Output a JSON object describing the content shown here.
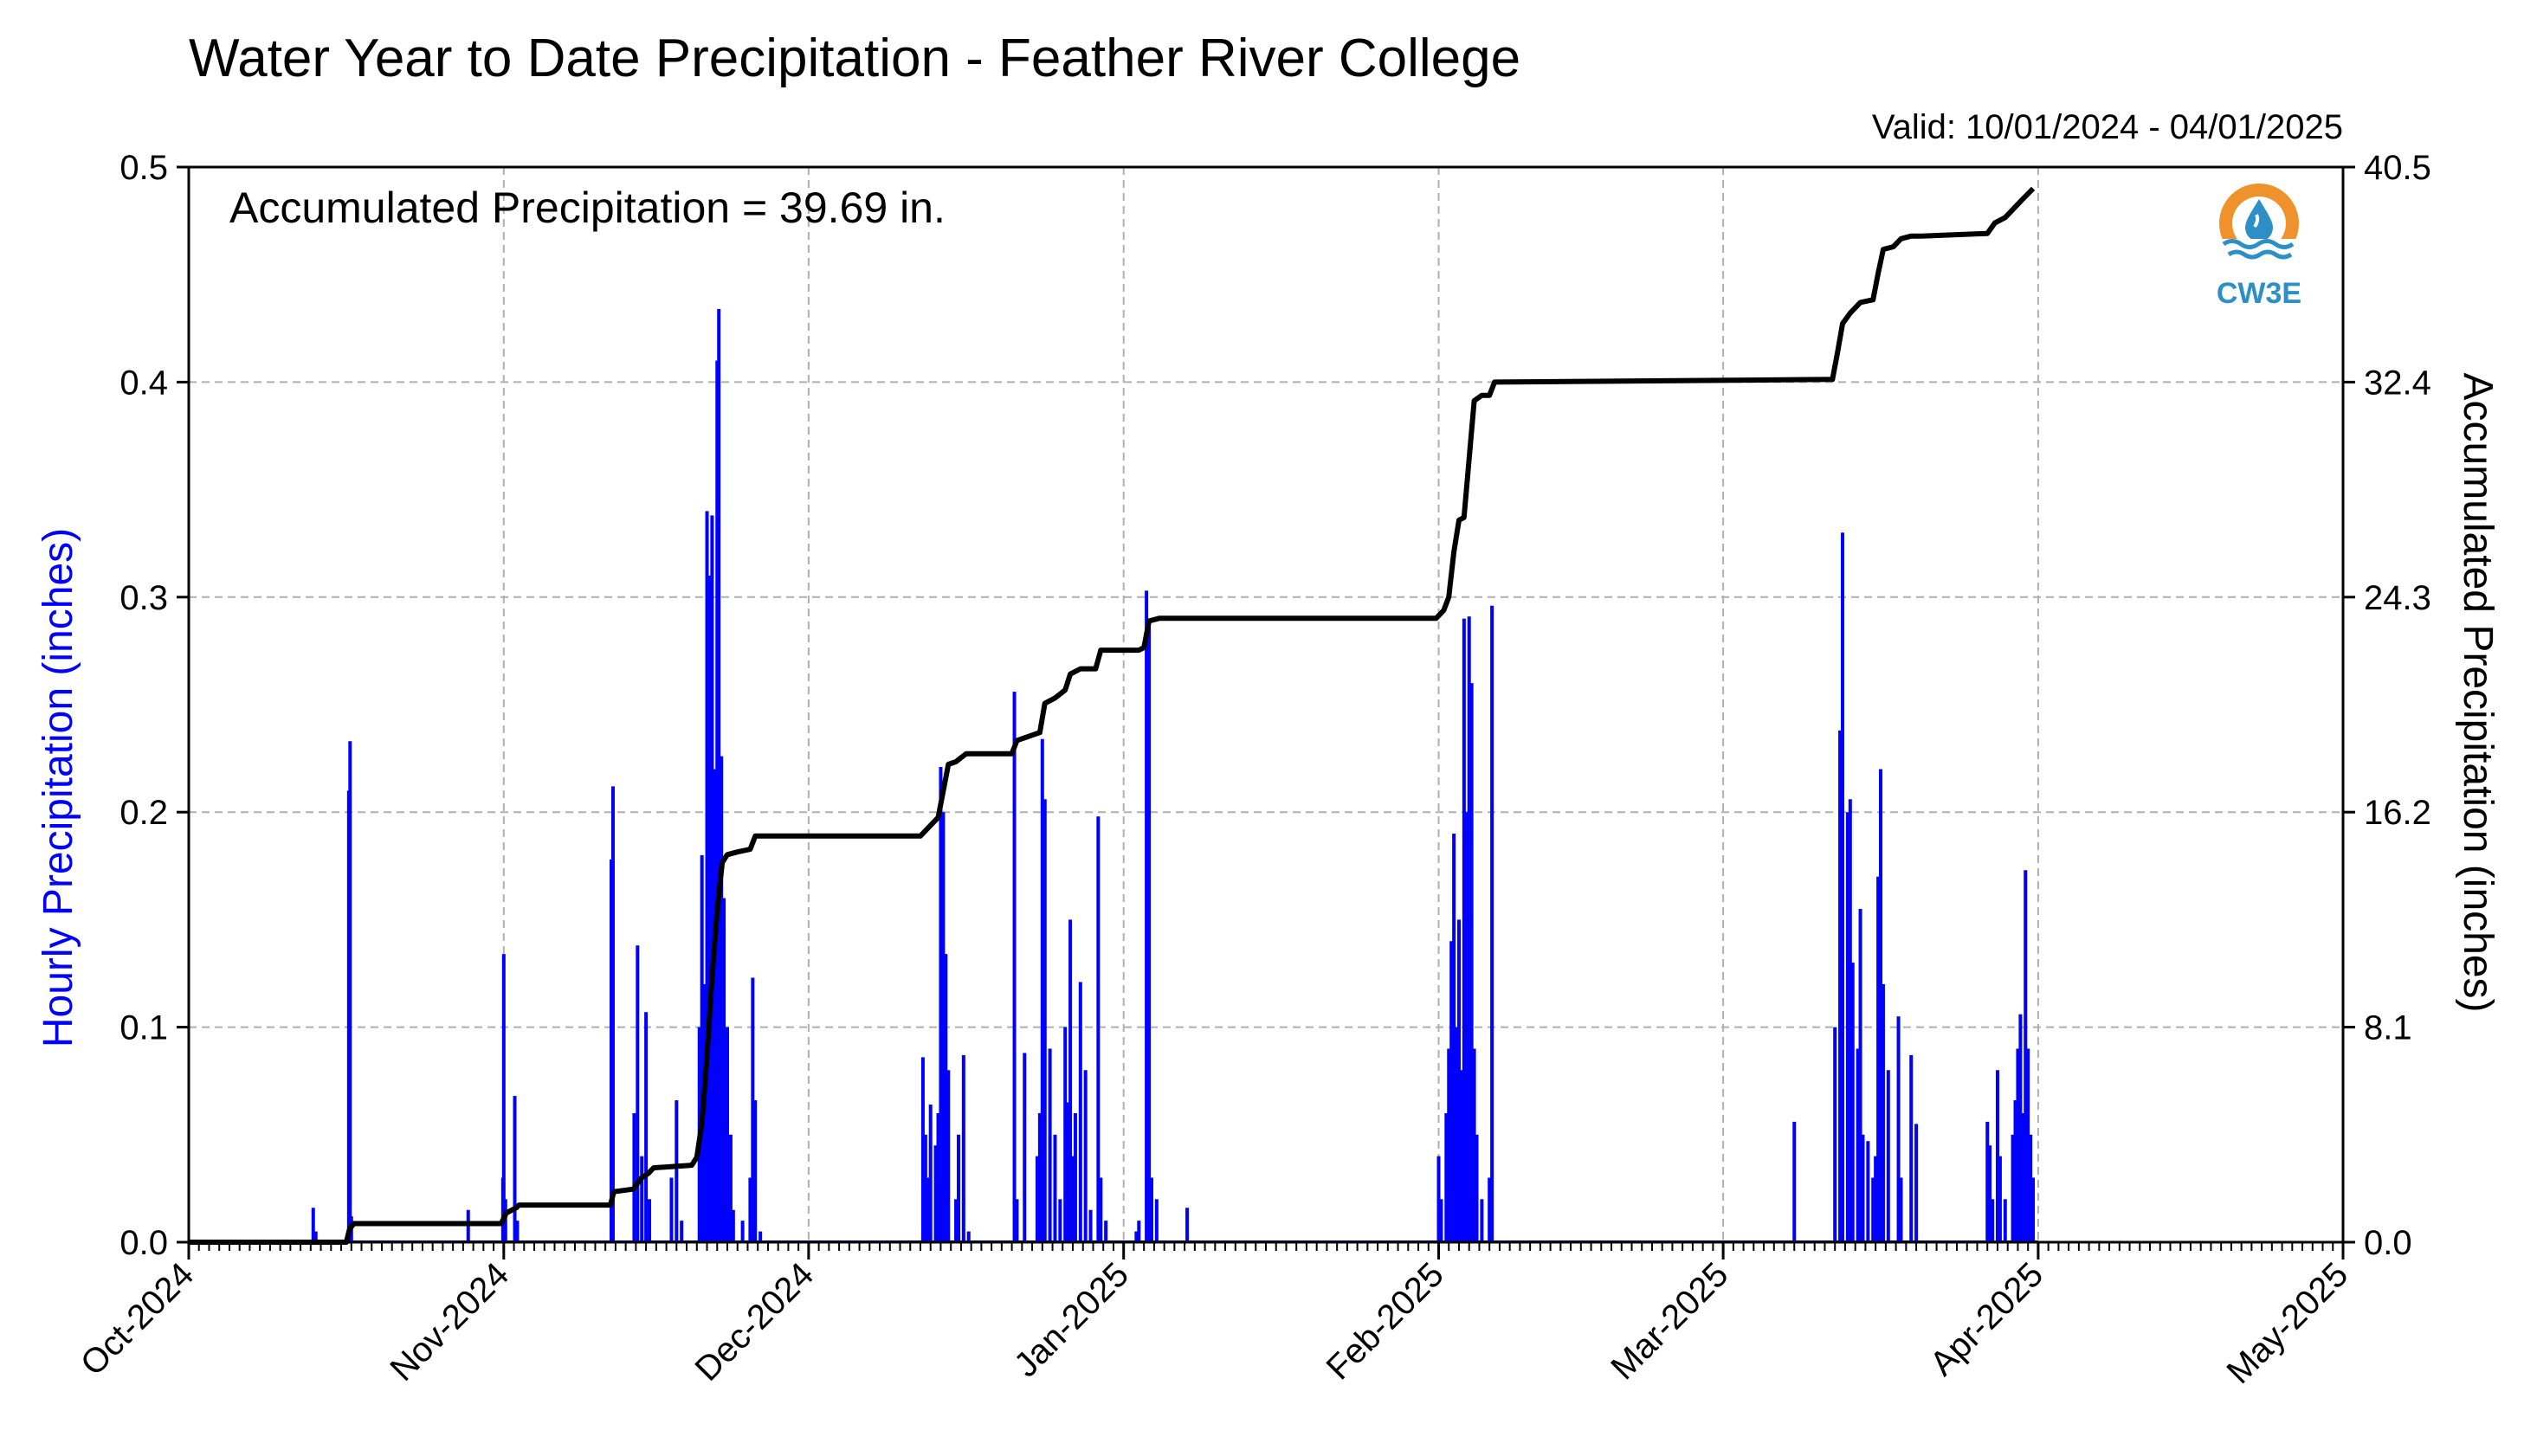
{
  "chart_data": {
    "type": "bar+line",
    "title": "Water Year to Date Precipitation - Feather River College",
    "subtitle": "Valid: 10/01/2024 - 04/01/2025",
    "annotation": "Accumulated Precipitation = 39.69 in.",
    "logo_text": "CW3E",
    "y_left": {
      "label": "Hourly Precipitation (inches)",
      "range": [
        0.0,
        0.5
      ],
      "ticks": [
        "0.0",
        "0.1",
        "0.2",
        "0.3",
        "0.4",
        "0.5"
      ],
      "color": "#0000ff"
    },
    "y_right": {
      "label": "Accumulated Precipitation (inches)",
      "range": [
        0.0,
        40.5
      ],
      "ticks": [
        "0.0",
        "8.1",
        "16.2",
        "24.3",
        "32.4",
        "40.5"
      ],
      "color": "#000000"
    },
    "x_axis": {
      "range": [
        "2024-10-01",
        "2025-05-01"
      ],
      "tick_labels": [
        "Oct-2024",
        "Nov-2024",
        "Dec-2024",
        "Jan-2025",
        "Feb-2025",
        "Mar-2025",
        "Apr-2025",
        "May-2025"
      ],
      "tick_dates": [
        "2024-10-01",
        "2024-11-01",
        "2024-12-01",
        "2025-01-01",
        "2025-02-01",
        "2025-03-01",
        "2025-04-01",
        "2025-05-01"
      ]
    },
    "grid": true,
    "hourly_series": {
      "name": "Hourly Precipitation",
      "color": "#0000ff",
      "points": [
        [
          "2024-10-13T06:00",
          0.016
        ],
        [
          "2024-10-13T12:00",
          0.005
        ],
        [
          "2024-10-16T18:00",
          0.21
        ],
        [
          "2024-10-16T21:00",
          0.233
        ],
        [
          "2024-10-17T00:00",
          0.012
        ],
        [
          "2024-10-28T12:00",
          0.015
        ],
        [
          "2024-10-31T22:00",
          0.03
        ],
        [
          "2024-11-01T00:00",
          0.134
        ],
        [
          "2024-11-01T04:00",
          0.02
        ],
        [
          "2024-11-02T02:00",
          0.068
        ],
        [
          "2024-11-02T08:00",
          0.01
        ],
        [
          "2024-11-11T14:00",
          0.178
        ],
        [
          "2024-11-11T18:00",
          0.212
        ],
        [
          "2024-11-13T20:00",
          0.06
        ],
        [
          "2024-11-14T04:00",
          0.138
        ],
        [
          "2024-11-14T14:00",
          0.04
        ],
        [
          "2024-11-15T00:00",
          0.107
        ],
        [
          "2024-11-15T08:00",
          0.02
        ],
        [
          "2024-11-17T12:00",
          0.03
        ],
        [
          "2024-11-18T00:00",
          0.066
        ],
        [
          "2024-11-18T12:00",
          0.01
        ],
        [
          "2024-11-20T06:00",
          0.1
        ],
        [
          "2024-11-20T12:00",
          0.18
        ],
        [
          "2024-11-20T18:00",
          0.12
        ],
        [
          "2024-11-21T00:00",
          0.34
        ],
        [
          "2024-11-21T06:00",
          0.31
        ],
        [
          "2024-11-21T09:00",
          0.28
        ],
        [
          "2024-11-21T12:00",
          0.338
        ],
        [
          "2024-11-21T18:00",
          0.22
        ],
        [
          "2024-11-22T00:00",
          0.41
        ],
        [
          "2024-11-22T04:00",
          0.434
        ],
        [
          "2024-11-22T10:00",
          0.226
        ],
        [
          "2024-11-22T16:00",
          0.16
        ],
        [
          "2024-11-23T00:00",
          0.1
        ],
        [
          "2024-11-23T08:00",
          0.05
        ],
        [
          "2024-11-23T14:00",
          0.015
        ],
        [
          "2024-11-24T12:00",
          0.01
        ],
        [
          "2024-11-25T06:00",
          0.03
        ],
        [
          "2024-11-25T12:00",
          0.123
        ],
        [
          "2024-11-25T18:00",
          0.066
        ],
        [
          "2024-11-26T06:00",
          0.005
        ],
        [
          "2024-12-12T06:00",
          0.086
        ],
        [
          "2024-12-12T12:00",
          0.05
        ],
        [
          "2024-12-12T18:00",
          0.03
        ],
        [
          "2024-12-13T00:00",
          0.064
        ],
        [
          "2024-12-13T12:00",
          0.045
        ],
        [
          "2024-12-13T18:00",
          0.06
        ],
        [
          "2024-12-14T00:00",
          0.221
        ],
        [
          "2024-12-14T06:00",
          0.2
        ],
        [
          "2024-12-14T12:00",
          0.134
        ],
        [
          "2024-12-14T18:00",
          0.08
        ],
        [
          "2024-12-15T12:00",
          0.02
        ],
        [
          "2024-12-15T18:00",
          0.05
        ],
        [
          "2024-12-16T06:00",
          0.087
        ],
        [
          "2024-12-16T18:00",
          0.005
        ],
        [
          "2024-12-21T06:00",
          0.256
        ],
        [
          "2024-12-21T12:00",
          0.02
        ],
        [
          "2024-12-22T06:00",
          0.088
        ],
        [
          "2024-12-23T12:00",
          0.04
        ],
        [
          "2024-12-23T18:00",
          0.06
        ],
        [
          "2024-12-24T00:00",
          0.234
        ],
        [
          "2024-12-24T06:00",
          0.206
        ],
        [
          "2024-12-24T18:00",
          0.09
        ],
        [
          "2024-12-25T06:00",
          0.05
        ],
        [
          "2024-12-25T18:00",
          0.02
        ],
        [
          "2024-12-26T06:00",
          0.1
        ],
        [
          "2024-12-26T12:00",
          0.065
        ],
        [
          "2024-12-26T18:00",
          0.15
        ],
        [
          "2024-12-27T00:00",
          0.04
        ],
        [
          "2024-12-27T06:00",
          0.06
        ],
        [
          "2024-12-27T18:00",
          0.121
        ],
        [
          "2024-12-28T06:00",
          0.08
        ],
        [
          "2024-12-28T18:00",
          0.015
        ],
        [
          "2024-12-29T12:00",
          0.198
        ],
        [
          "2024-12-29T18:00",
          0.03
        ],
        [
          "2024-12-30T06:00",
          0.01
        ],
        [
          "2025-01-02T06:00",
          0.005
        ],
        [
          "2025-01-02T12:00",
          0.01
        ],
        [
          "2025-01-03T06:00",
          0.303
        ],
        [
          "2025-01-03T12:00",
          0.29
        ],
        [
          "2025-01-03T18:00",
          0.03
        ],
        [
          "2025-01-04T06:00",
          0.02
        ],
        [
          "2025-01-07T06:00",
          0.016
        ],
        [
          "2025-02-01T00:00",
          0.04
        ],
        [
          "2025-02-01T06:00",
          0.02
        ],
        [
          "2025-02-01T18:00",
          0.06
        ],
        [
          "2025-02-02T00:00",
          0.09
        ],
        [
          "2025-02-02T06:00",
          0.14
        ],
        [
          "2025-02-02T12:00",
          0.19
        ],
        [
          "2025-02-02T18:00",
          0.1
        ],
        [
          "2025-02-03T00:00",
          0.15
        ],
        [
          "2025-02-03T06:00",
          0.08
        ],
        [
          "2025-02-03T12:00",
          0.29
        ],
        [
          "2025-02-03T18:00",
          0.2
        ],
        [
          "2025-02-04T00:00",
          0.291
        ],
        [
          "2025-02-04T06:00",
          0.26
        ],
        [
          "2025-02-04T12:00",
          0.09
        ],
        [
          "2025-02-04T18:00",
          0.05
        ],
        [
          "2025-02-05T06:00",
          0.02
        ],
        [
          "2025-02-06T00:00",
          0.03
        ],
        [
          "2025-02-06T06:00",
          0.296
        ],
        [
          "2025-03-08T00:00",
          0.056
        ],
        [
          "2025-03-12T00:00",
          0.1
        ],
        [
          "2025-03-12T12:00",
          0.238
        ],
        [
          "2025-03-12T18:00",
          0.33
        ],
        [
          "2025-03-13T06:00",
          0.2
        ],
        [
          "2025-03-13T12:00",
          0.206
        ],
        [
          "2025-03-13T18:00",
          0.13
        ],
        [
          "2025-03-14T06:00",
          0.09
        ],
        [
          "2025-03-14T12:00",
          0.155
        ],
        [
          "2025-03-14T18:00",
          0.05
        ],
        [
          "2025-03-15T06:00",
          0.047
        ],
        [
          "2025-03-15T18:00",
          0.03
        ],
        [
          "2025-03-16T00:00",
          0.04
        ],
        [
          "2025-03-16T06:00",
          0.17
        ],
        [
          "2025-03-16T12:00",
          0.22
        ],
        [
          "2025-03-16T18:00",
          0.12
        ],
        [
          "2025-03-17T06:00",
          0.08
        ],
        [
          "2025-03-18T06:00",
          0.105
        ],
        [
          "2025-03-18T12:00",
          0.03
        ],
        [
          "2025-03-19T12:00",
          0.087
        ],
        [
          "2025-03-20T00:00",
          0.055
        ],
        [
          "2025-03-27T00:00",
          0.056
        ],
        [
          "2025-03-27T06:00",
          0.045
        ],
        [
          "2025-03-27T12:00",
          0.02
        ],
        [
          "2025-03-28T00:00",
          0.08
        ],
        [
          "2025-03-28T06:00",
          0.04
        ],
        [
          "2025-03-28T18:00",
          0.02
        ],
        [
          "2025-03-29T12:00",
          0.05
        ],
        [
          "2025-03-29T18:00",
          0.066
        ],
        [
          "2025-03-30T00:00",
          0.09
        ],
        [
          "2025-03-30T06:00",
          0.106
        ],
        [
          "2025-03-30T12:00",
          0.06
        ],
        [
          "2025-03-30T18:00",
          0.173
        ],
        [
          "2025-03-31T00:00",
          0.09
        ],
        [
          "2025-03-31T06:00",
          0.05
        ],
        [
          "2025-03-31T12:00",
          0.03
        ]
      ]
    },
    "accumulated_series": {
      "name": "Accumulated Precipitation",
      "color": "#000000",
      "points": [
        [
          "2024-10-01T00:00",
          0.0
        ],
        [
          "2024-10-16T12:00",
          0.0
        ],
        [
          "2024-10-16T20:00",
          0.5
        ],
        [
          "2024-10-17T06:00",
          0.7
        ],
        [
          "2024-10-31T18:00",
          0.7
        ],
        [
          "2024-11-01T06:00",
          1.1
        ],
        [
          "2024-11-02T06:00",
          1.3
        ],
        [
          "2024-11-02T12:00",
          1.4
        ],
        [
          "2024-11-11T12:00",
          1.4
        ],
        [
          "2024-11-11T20:00",
          1.9
        ],
        [
          "2024-11-13T18:00",
          2.0
        ],
        [
          "2024-11-14T12:00",
          2.4
        ],
        [
          "2024-11-15T06:00",
          2.6
        ],
        [
          "2024-11-15T18:00",
          2.8
        ],
        [
          "2024-11-19T12:00",
          2.9
        ],
        [
          "2024-11-20T00:00",
          3.2
        ],
        [
          "2024-11-20T12:00",
          4.5
        ],
        [
          "2024-11-21T00:00",
          7.0
        ],
        [
          "2024-11-21T12:00",
          10.0
        ],
        [
          "2024-11-22T00:00",
          12.5
        ],
        [
          "2024-11-22T12:00",
          14.3
        ],
        [
          "2024-11-23T00:00",
          14.6
        ],
        [
          "2024-11-24T00:00",
          14.7
        ],
        [
          "2024-11-25T06:00",
          14.8
        ],
        [
          "2024-11-25T18:00",
          15.3
        ],
        [
          "2024-11-26T06:00",
          15.3
        ],
        [
          "2024-12-12T00:00",
          15.3
        ],
        [
          "2024-12-12T18:00",
          15.6
        ],
        [
          "2024-12-13T18:00",
          16.0
        ],
        [
          "2024-12-14T06:00",
          17.0
        ],
        [
          "2024-12-14T18:00",
          18.0
        ],
        [
          "2024-12-15T12:00",
          18.1
        ],
        [
          "2024-12-16T12:00",
          18.4
        ],
        [
          "2024-12-21T00:00",
          18.4
        ],
        [
          "2024-12-21T12:00",
          18.9
        ],
        [
          "2024-12-23T18:00",
          19.2
        ],
        [
          "2024-12-24T06:00",
          20.3
        ],
        [
          "2024-12-25T06:00",
          20.5
        ],
        [
          "2024-12-26T06:00",
          20.8
        ],
        [
          "2024-12-26T18:00",
          21.4
        ],
        [
          "2024-12-27T18:00",
          21.6
        ],
        [
          "2024-12-29T06:00",
          21.6
        ],
        [
          "2024-12-29T18:00",
          22.3
        ],
        [
          "2025-01-02T12:00",
          22.3
        ],
        [
          "2025-01-03T00:00",
          22.4
        ],
        [
          "2025-01-03T12:00",
          23.4
        ],
        [
          "2025-01-04T12:00",
          23.5
        ],
        [
          "2025-01-31T18:00",
          23.5
        ],
        [
          "2025-02-01T12:00",
          23.8
        ],
        [
          "2025-02-02T00:00",
          24.3
        ],
        [
          "2025-02-02T12:00",
          26.0
        ],
        [
          "2025-02-03T00:00",
          27.2
        ],
        [
          "2025-02-03T12:00",
          27.3
        ],
        [
          "2025-02-04T00:00",
          29.5
        ],
        [
          "2025-02-04T12:00",
          31.7
        ],
        [
          "2025-02-05T06:00",
          31.9
        ],
        [
          "2025-02-06T00:00",
          31.9
        ],
        [
          "2025-02-06T12:00",
          32.4
        ],
        [
          "2025-03-11T18:00",
          32.5
        ],
        [
          "2025-03-12T06:00",
          33.5
        ],
        [
          "2025-03-12T18:00",
          34.6
        ],
        [
          "2025-03-13T12:00",
          35.0
        ],
        [
          "2025-03-14T12:00",
          35.4
        ],
        [
          "2025-03-15T18:00",
          35.5
        ],
        [
          "2025-03-16T06:00",
          36.5
        ],
        [
          "2025-03-16T18:00",
          37.4
        ],
        [
          "2025-03-17T18:00",
          37.5
        ],
        [
          "2025-03-18T12:00",
          37.8
        ],
        [
          "2025-03-19T12:00",
          37.9
        ],
        [
          "2025-03-20T12:00",
          37.9
        ],
        [
          "2025-03-27T00:00",
          38.0
        ],
        [
          "2025-03-27T18:00",
          38.4
        ],
        [
          "2025-03-28T18:00",
          38.6
        ],
        [
          "2025-03-29T18:00",
          39.0
        ],
        [
          "2025-03-30T12:00",
          39.3
        ],
        [
          "2025-03-31T12:00",
          39.69
        ]
      ]
    }
  }
}
